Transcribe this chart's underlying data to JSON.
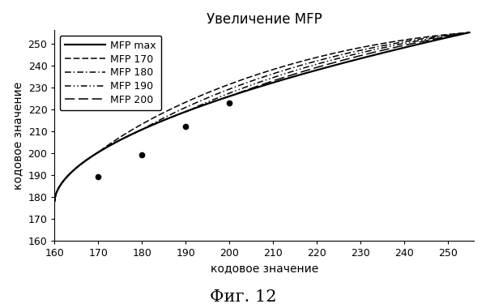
{
  "title": "Увеличение MFP",
  "xlabel": "кодовое значение",
  "ylabel": "кодовое значение",
  "fig_label": "Фиг. 12",
  "xlim": [
    160,
    256
  ],
  "ylim": [
    160,
    256
  ],
  "xticks": [
    160,
    170,
    180,
    190,
    200,
    210,
    220,
    230,
    240,
    250
  ],
  "yticks": [
    160,
    170,
    180,
    190,
    200,
    210,
    220,
    230,
    240,
    250
  ],
  "x_start": 160,
  "y_start": 178,
  "x_end": 255,
  "y_end": 255,
  "gamma_base": 0.55,
  "mfp_values": [
    170,
    180,
    190,
    200
  ],
  "mfp_boost": [
    1.0,
    0.7,
    0.45,
    0.22
  ],
  "marker_points": [
    [
      170,
      189
    ],
    [
      180,
      199
    ],
    [
      190,
      212
    ],
    [
      200,
      223
    ]
  ],
  "legend_labels": [
    "MFP max",
    "MFP 170",
    "MFP 180",
    "MFP 190",
    "MFP 200"
  ],
  "background_color": "#ffffff",
  "title_fontsize": 12,
  "label_fontsize": 10,
  "tick_fontsize": 9,
  "legend_fontsize": 9
}
